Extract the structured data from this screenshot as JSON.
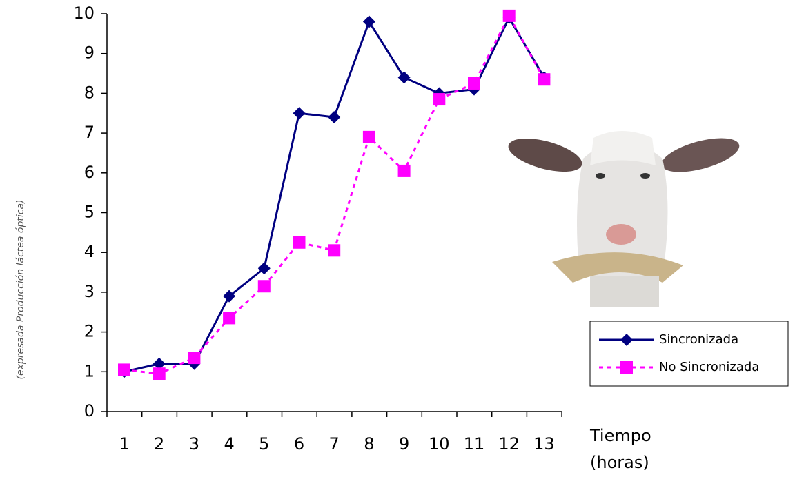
{
  "chart_data": {
    "type": "line",
    "y_label": "(expresada Producción láctea óptica)",
    "x_label": [
      "Tiempo",
      "(horas)"
    ],
    "categories": [
      "1",
      "2",
      "3",
      "4",
      "5",
      "6",
      "7",
      "8",
      "9",
      "10",
      "11",
      "12",
      "13"
    ],
    "series": [
      {
        "name": "Sincronizada",
        "color": "#000080",
        "marker": "diamond",
        "dashed": false,
        "values": [
          1.0,
          1.2,
          1.2,
          2.9,
          3.6,
          7.5,
          7.4,
          9.8,
          8.4,
          8.0,
          8.1,
          9.9,
          8.4
        ]
      },
      {
        "name": "No Sincronizada",
        "color": "#ff00ff",
        "marker": "square",
        "dashed": true,
        "values": [
          1.05,
          0.95,
          1.35,
          2.35,
          3.15,
          4.25,
          4.05,
          6.9,
          6.05,
          7.85,
          8.25,
          9.95,
          8.35
        ]
      }
    ],
    "ylim": [
      0,
      10
    ],
    "yticks": [
      0,
      1,
      2,
      3,
      4,
      5,
      6,
      7,
      8,
      9,
      10
    ]
  }
}
